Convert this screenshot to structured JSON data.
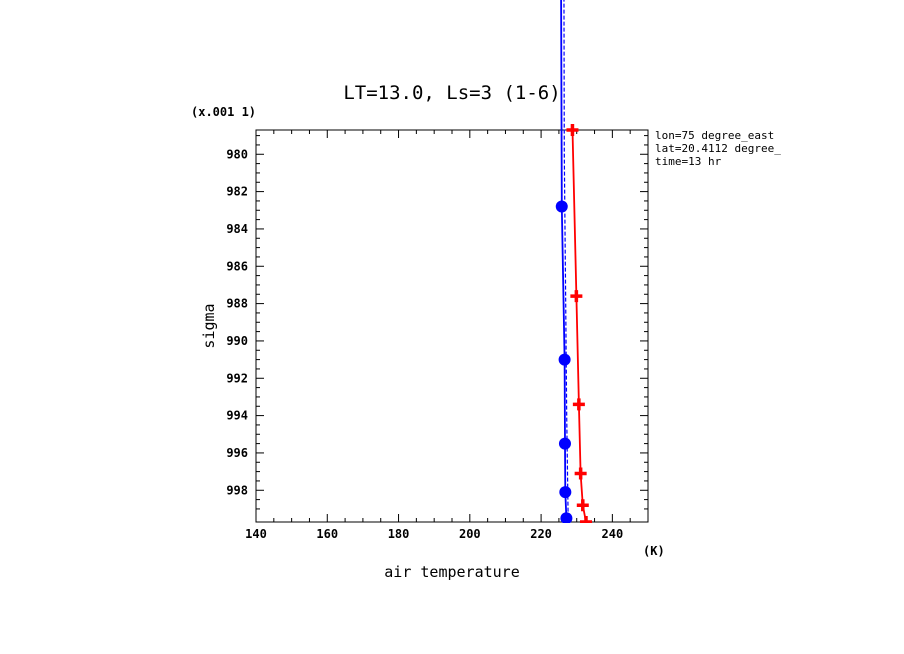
{
  "chart_data": {
    "type": "line",
    "title": "LT=13.0, Ls=3 (1-6)",
    "xlabel": "air temperature",
    "xunit": "(K)",
    "ylabel": "sigma",
    "yscale_label": "(x.001 1)",
    "xlim": [
      140,
      250
    ],
    "ylim": [
      978.7,
      999.7
    ],
    "y_inverted": true,
    "x_ticks": [
      140,
      160,
      180,
      200,
      220,
      240
    ],
    "y_ticks": [
      980,
      982,
      984,
      986,
      988,
      990,
      992,
      994,
      996,
      998
    ],
    "grid": false,
    "annotations": [
      "lon=75 degree_east",
      "lat=20.4112 degree_",
      "time=13 hr"
    ],
    "series": [
      {
        "color": "#ff0000",
        "marker": "plus",
        "line": "solid",
        "points": [
          [
            228.8,
            978.7
          ],
          [
            229.9,
            987.6
          ],
          [
            230.6,
            993.4
          ],
          [
            231.1,
            997.1
          ],
          [
            231.7,
            998.8
          ],
          [
            232.6,
            999.7
          ]
        ]
      },
      {
        "color": "#0000ff",
        "marker": "circle",
        "line": "solid",
        "points": [
          [
            225.6,
            970.0
          ],
          [
            225.8,
            982.8
          ],
          [
            226.6,
            991.0
          ],
          [
            226.7,
            995.5
          ],
          [
            226.8,
            998.1
          ],
          [
            227.1,
            999.5
          ]
        ]
      },
      {
        "color": "#0000ff",
        "marker": "none",
        "line": "dashed",
        "points": [
          [
            226.4,
            970.0
          ],
          [
            226.5,
            980.0
          ],
          [
            226.9,
            988.0
          ],
          [
            227.2,
            994.0
          ],
          [
            227.6,
            999.7
          ]
        ]
      }
    ]
  }
}
